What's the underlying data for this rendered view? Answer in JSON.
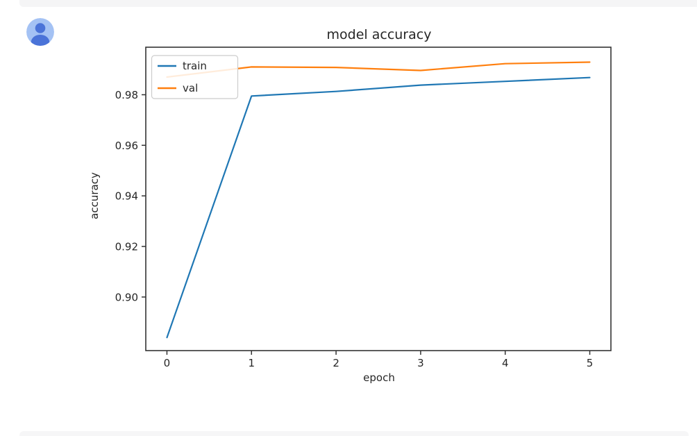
{
  "colors": {
    "avatar_bg": "#a4c2f4",
    "avatar_person": "#4a73d8",
    "strip_gray": "#f5f5f6"
  },
  "chart_data": {
    "type": "line",
    "title": "model accuracy",
    "xlabel": "epoch",
    "ylabel": "accuracy",
    "x": [
      0,
      1,
      2,
      3,
      4,
      5
    ],
    "series": [
      {
        "name": "train",
        "color": "#1f77b4",
        "values": [
          0.884,
          0.9795,
          0.9813,
          0.9838,
          0.9853,
          0.9868
        ]
      },
      {
        "name": "val",
        "color": "#ff7f0e",
        "values": [
          0.987,
          0.991,
          0.9908,
          0.9896,
          0.9923,
          0.9929
        ]
      }
    ],
    "xticks": [
      0,
      1,
      2,
      3,
      4,
      5
    ],
    "xtick_labels": [
      "0",
      "1",
      "2",
      "3",
      "4",
      "5"
    ],
    "yticks": [
      0.9,
      0.92,
      0.94,
      0.96,
      0.98
    ],
    "ytick_labels": [
      "0.90",
      "0.92",
      "0.94",
      "0.96",
      "0.98"
    ],
    "xlim": [
      -0.25,
      5.25
    ],
    "ylim": [
      0.8788,
      0.9988
    ],
    "grid": false,
    "legend_position": "upper left",
    "legend_entries": [
      "train",
      "val"
    ]
  }
}
